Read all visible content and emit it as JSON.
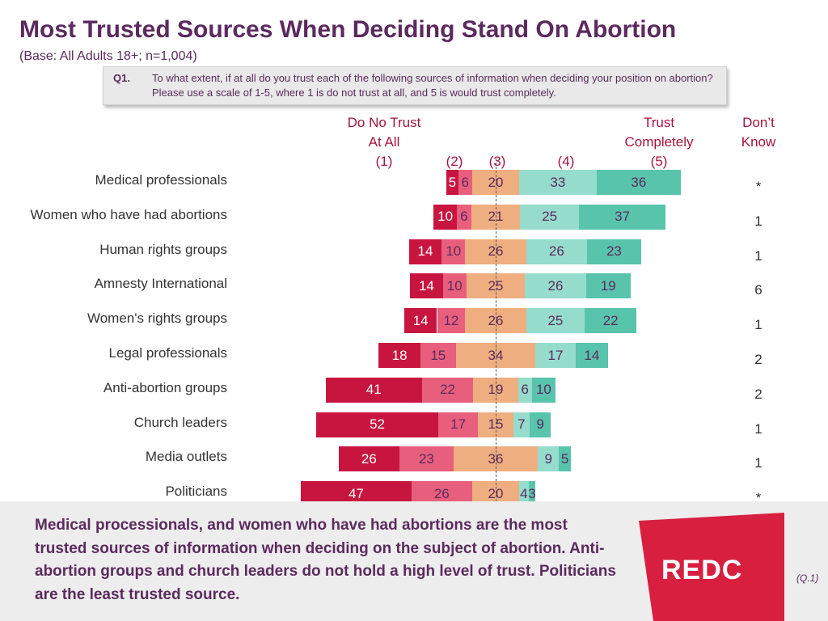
{
  "title": "Most Trusted Sources When Deciding Stand On Abortion",
  "base": "(Base: All Adults 18+; n=1,004)",
  "question": {
    "label": "Q1.",
    "text": "To what extent, if at all do you trust each of the following sources of information when deciding your position on abortion?  Please use a scale of 1-5, where 1 is do not trust at all, and 5 is would trust completely."
  },
  "headers": {
    "low_line1": "Do No Trust",
    "low_line2": "At All",
    "s1": "(1)",
    "s2": "(2)",
    "s3": "(3)",
    "s4": "(4)",
    "high_line1": "Trust",
    "high_line2": "Completely",
    "s5": "(5)",
    "dk_line1": "Don’t",
    "dk_line2": "Know"
  },
  "chart_data": {
    "type": "bar",
    "subtype": "diverging stacked bar",
    "categories": [
      "Medical professionals",
      "Women who have had abortions",
      "Human rights groups",
      "Amnesty International",
      "Women's rights groups",
      "Legal professionals",
      "Anti-abortion groups",
      "Church leaders",
      "Media outlets",
      "Politicians"
    ],
    "series": [
      {
        "name": "(1) Do No Trust At All",
        "values": [
          5,
          10,
          14,
          14,
          14,
          18,
          41,
          52,
          26,
          47
        ]
      },
      {
        "name": "(2)",
        "values": [
          6,
          6,
          10,
          10,
          12,
          15,
          22,
          17,
          23,
          26
        ]
      },
      {
        "name": "(3)",
        "values": [
          20,
          21,
          26,
          25,
          26,
          34,
          19,
          15,
          36,
          20
        ]
      },
      {
        "name": "(4)",
        "values": [
          33,
          25,
          26,
          26,
          25,
          17,
          6,
          7,
          9,
          4
        ]
      },
      {
        "name": "(5) Trust Completely",
        "values": [
          36,
          37,
          23,
          19,
          22,
          14,
          10,
          9,
          5,
          3
        ]
      }
    ],
    "dont_know": [
      "*",
      "1",
      "1",
      "6",
      "1",
      "2",
      "2",
      "1",
      "1",
      "*"
    ],
    "colors": [
      "#c8153f",
      "#e85f7d",
      "#efae7f",
      "#96dccd",
      "#58c4ac"
    ]
  },
  "footer": {
    "text": "Medical processionals, and women who have had abortions are the most trusted sources of information when deciding on the subject of abortion. Anti-abortion groups and church leaders do not hold a high level of trust. Politicians are the least trusted source.",
    "logo": "REDC",
    "ref": "(Q.1)",
    "brand_color": "#d81f3f"
  }
}
